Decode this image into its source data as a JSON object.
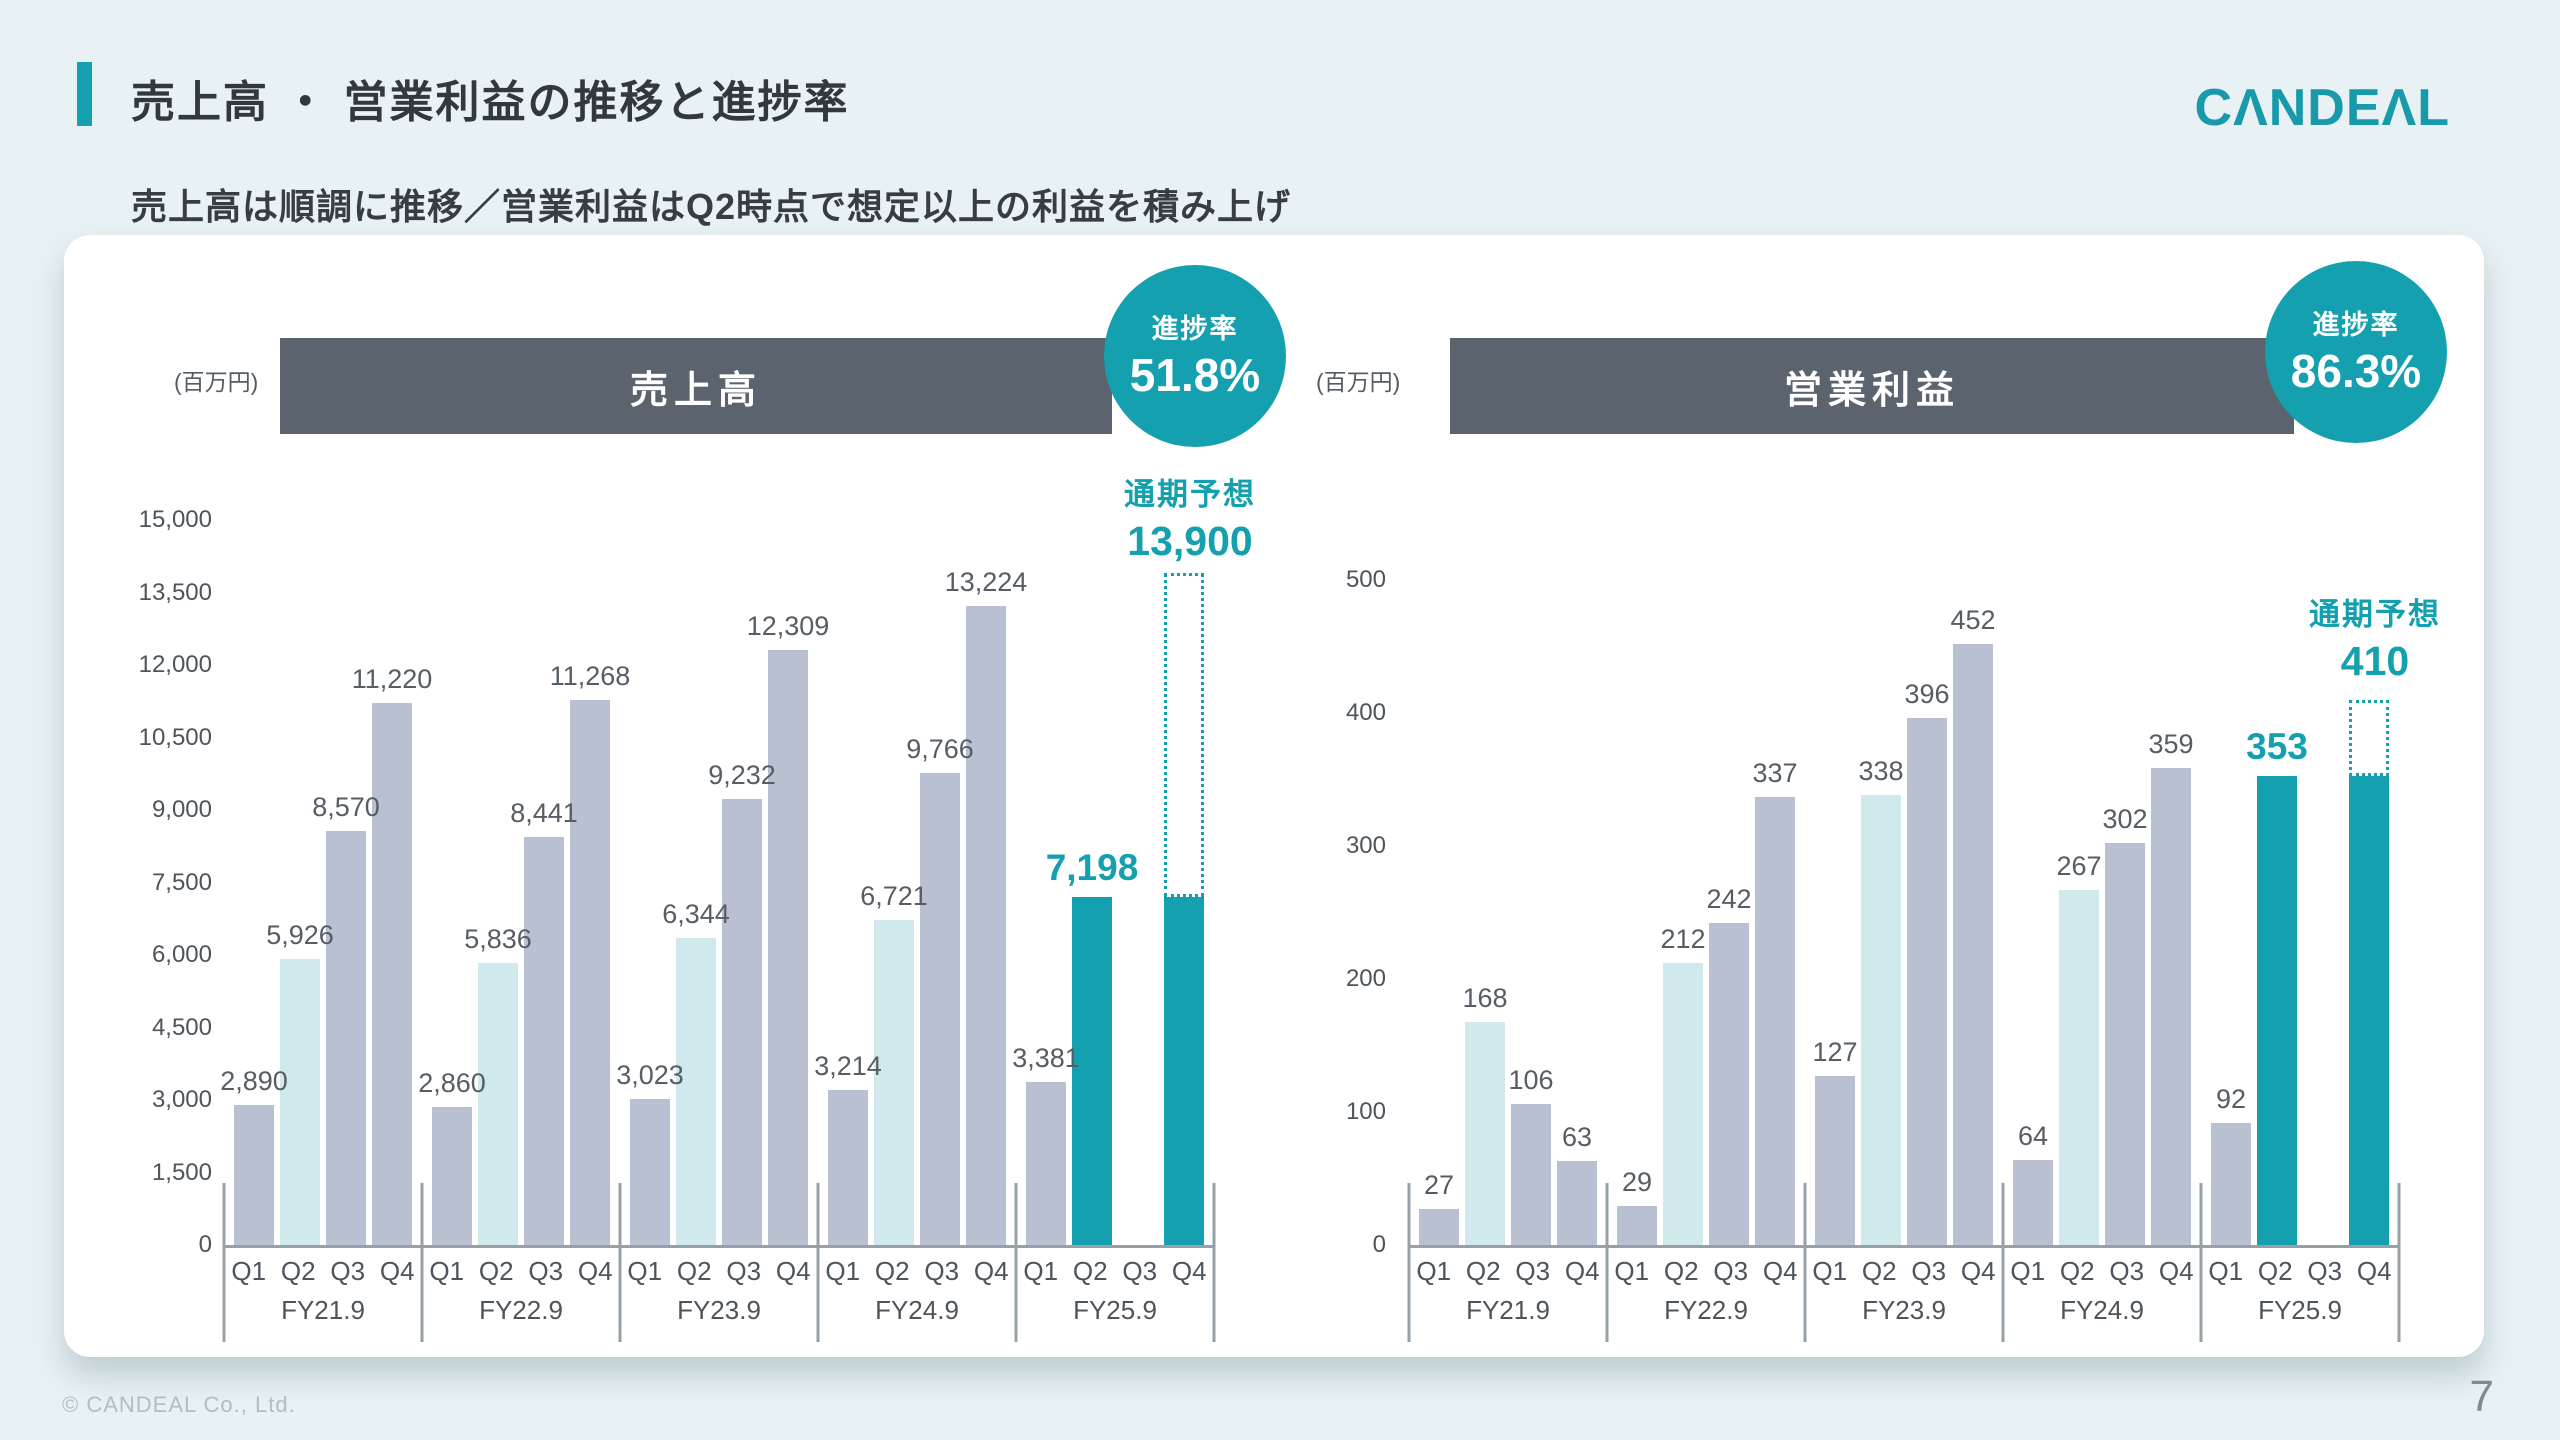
{
  "page": {
    "title": "売上高 ・ 営業利益の推移と進捗率",
    "subtitle": "売上高は順調に推移／営業利益はQ2時点で想定以上の利益を積み上げ",
    "logo": "CANDEAL",
    "footer": "© CANDEAL Co., Ltd.",
    "page_number": "7"
  },
  "colors": {
    "accent_teal": "#14a0af",
    "bar_gray": "#b9c0d1",
    "bar_cyan": "#cfe9ed",
    "title_band": "#5a636e",
    "background": "#e8f1f3",
    "card": "#ffffff"
  },
  "chart_data": [
    {
      "type": "bar",
      "title": "売上高",
      "unit": "(百万円)",
      "progress": {
        "label": "進捗率",
        "value": "51.8%"
      },
      "forecast": {
        "label": "通期予想",
        "value": "13,900"
      },
      "ymax": 15000,
      "ylim": [
        0,
        15000
      ],
      "yticks": [
        {
          "label": "15,000",
          "value": 15000
        },
        {
          "label": "13,500",
          "value": 13500
        },
        {
          "label": "12,000",
          "value": 12000
        },
        {
          "label": "10,500",
          "value": 10500
        },
        {
          "label": "9,000",
          "value": 9000
        },
        {
          "label": "7,500",
          "value": 7500
        },
        {
          "label": "6,000",
          "value": 6000
        },
        {
          "label": "4,500",
          "value": 4500
        },
        {
          "label": "3,000",
          "value": 3000
        },
        {
          "label": "1,500",
          "value": 1500
        },
        {
          "label": "0",
          "value": 0
        }
      ],
      "groups": [
        {
          "fy": "FY21.9",
          "bars": [
            {
              "q": "Q1",
              "value": 2890,
              "label": "2,890",
              "variant": "gray"
            },
            {
              "q": "Q2",
              "value": 5926,
              "label": "5,926",
              "variant": "cyan"
            },
            {
              "q": "Q3",
              "value": 8570,
              "label": "8,570",
              "variant": "gray"
            },
            {
              "q": "Q4",
              "value": 11220,
              "label": "11,220",
              "variant": "gray"
            }
          ]
        },
        {
          "fy": "FY22.9",
          "bars": [
            {
              "q": "Q1",
              "value": 2860,
              "label": "2,860",
              "variant": "gray"
            },
            {
              "q": "Q2",
              "value": 5836,
              "label": "5,836",
              "variant": "cyan"
            },
            {
              "q": "Q3",
              "value": 8441,
              "label": "8,441",
              "variant": "gray"
            },
            {
              "q": "Q4",
              "value": 11268,
              "label": "11,268",
              "variant": "gray"
            }
          ]
        },
        {
          "fy": "FY23.9",
          "bars": [
            {
              "q": "Q1",
              "value": 3023,
              "label": "3,023",
              "variant": "gray"
            },
            {
              "q": "Q2",
              "value": 6344,
              "label": "6,344",
              "variant": "cyan"
            },
            {
              "q": "Q3",
              "value": 9232,
              "label": "9,232",
              "variant": "gray"
            },
            {
              "q": "Q4",
              "value": 12309,
              "label": "12,309",
              "variant": "gray"
            }
          ]
        },
        {
          "fy": "FY24.9",
          "bars": [
            {
              "q": "Q1",
              "value": 3214,
              "label": "3,214",
              "variant": "gray"
            },
            {
              "q": "Q2",
              "value": 6721,
              "label": "6,721",
              "variant": "cyan"
            },
            {
              "q": "Q3",
              "value": 9766,
              "label": "9,766",
              "variant": "gray"
            },
            {
              "q": "Q4",
              "value": 13224,
              "label": "13,224",
              "variant": "gray"
            }
          ]
        },
        {
          "fy": "FY25.9",
          "bars": [
            {
              "q": "Q1",
              "value": 3381,
              "label": "3,381",
              "variant": "gray"
            },
            {
              "q": "Q2",
              "value": 7198,
              "label": "7,198",
              "variant": "teal"
            },
            {
              "q": "Q3",
              "value": 0,
              "label": "",
              "variant": "none"
            },
            {
              "q": "Q4",
              "value": 13900,
              "solid": 7198,
              "label": "",
              "variant": "forecast"
            }
          ]
        }
      ]
    },
    {
      "type": "bar",
      "title": "営業利益",
      "unit": "(百万円)",
      "progress": {
        "label": "進捗率",
        "value": "86.3%"
      },
      "forecast": {
        "label": "通期予想",
        "value": "410"
      },
      "ymax": 500,
      "ylim": [
        0,
        500
      ],
      "yticks": [
        {
          "label": "500",
          "value": 500
        },
        {
          "label": "400",
          "value": 400
        },
        {
          "label": "300",
          "value": 300
        },
        {
          "label": "200",
          "value": 200
        },
        {
          "label": "100",
          "value": 100
        },
        {
          "label": "0",
          "value": 0
        }
      ],
      "groups": [
        {
          "fy": "FY21.9",
          "bars": [
            {
              "q": "Q1",
              "value": 27,
              "label": "27",
              "variant": "gray"
            },
            {
              "q": "Q2",
              "value": 168,
              "label": "168",
              "variant": "cyan"
            },
            {
              "q": "Q3",
              "value": 106,
              "label": "106",
              "variant": "gray"
            },
            {
              "q": "Q4",
              "value": 63,
              "label": "63",
              "variant": "gray"
            }
          ]
        },
        {
          "fy": "FY22.9",
          "bars": [
            {
              "q": "Q1",
              "value": 29,
              "label": "29",
              "variant": "gray"
            },
            {
              "q": "Q2",
              "value": 212,
              "label": "212",
              "variant": "cyan"
            },
            {
              "q": "Q3",
              "value": 242,
              "label": "242",
              "variant": "gray"
            },
            {
              "q": "Q4",
              "value": 337,
              "label": "337",
              "variant": "gray"
            }
          ]
        },
        {
          "fy": "FY23.9",
          "bars": [
            {
              "q": "Q1",
              "value": 127,
              "label": "127",
              "variant": "gray"
            },
            {
              "q": "Q2",
              "value": 338,
              "label": "338",
              "variant": "cyan"
            },
            {
              "q": "Q3",
              "value": 396,
              "label": "396",
              "variant": "gray"
            },
            {
              "q": "Q4",
              "value": 452,
              "label": "452",
              "variant": "gray"
            }
          ]
        },
        {
          "fy": "FY24.9",
          "bars": [
            {
              "q": "Q1",
              "value": 64,
              "label": "64",
              "variant": "gray"
            },
            {
              "q": "Q2",
              "value": 267,
              "label": "267",
              "variant": "cyan"
            },
            {
              "q": "Q3",
              "value": 302,
              "label": "302",
              "variant": "gray"
            },
            {
              "q": "Q4",
              "value": 359,
              "label": "359",
              "variant": "gray"
            }
          ]
        },
        {
          "fy": "FY25.9",
          "bars": [
            {
              "q": "Q1",
              "value": 92,
              "label": "92",
              "variant": "gray"
            },
            {
              "q": "Q2",
              "value": 353,
              "label": "353",
              "variant": "teal"
            },
            {
              "q": "Q3",
              "value": 0,
              "label": "",
              "variant": "none"
            },
            {
              "q": "Q4",
              "value": 410,
              "solid": 353,
              "label": "",
              "variant": "forecast"
            }
          ]
        }
      ]
    }
  ]
}
